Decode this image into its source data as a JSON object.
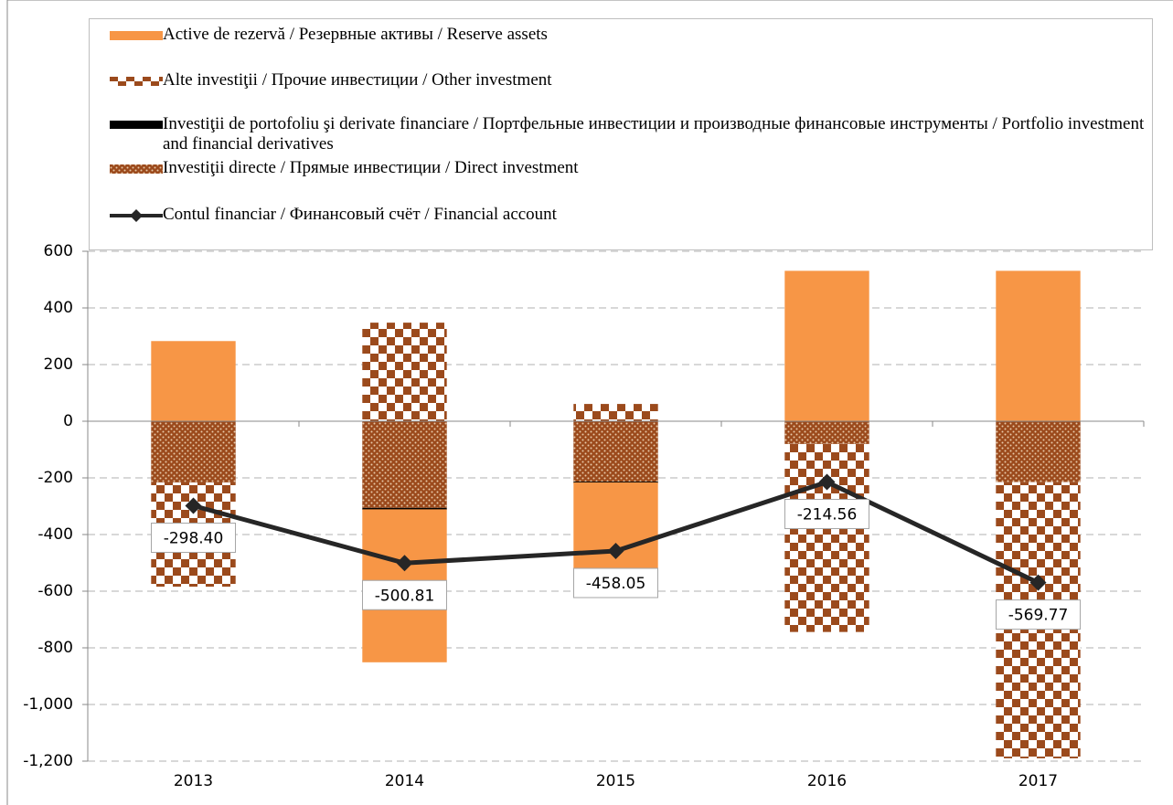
{
  "chart_data": {
    "type": "bar",
    "categories": [
      "2013",
      "2014",
      "2015",
      "2016",
      "2017"
    ],
    "series": [
      {
        "name": "Active de rezervă / Резервные активы / Reserve assets",
        "color": "#f79646",
        "values": [
          283,
          -540,
          -305,
          531,
          531
        ]
      },
      {
        "name": "Alte investiţii / Прочие инвестиции / Other investment",
        "color": "#9b4a1c",
        "values": [
          -368,
          348,
          61,
          -664,
          -975
        ]
      },
      {
        "name": "Investiţii de portofoliu şi derivate financiare / Портфельные инвестиции и производные финансовые инструменты / Portfolio investment and financial derivatives",
        "color": "#000000",
        "values": [
          0,
          -5,
          -3,
          0,
          0
        ]
      },
      {
        "name": "Investiţii directe / Прямые инвестиции / Direct investment",
        "color": "#9b4a1c",
        "values": [
          -216,
          -306,
          -213,
          -80,
          -215
        ]
      },
      {
        "name": "Contul financiar / Финансовый счёт / Financial account",
        "color": "#262626",
        "type": "line",
        "values": [
          -298.4,
          -500.81,
          -458.05,
          -214.56,
          -569.77
        ],
        "value_labels": [
          "-298.40",
          "-500.81",
          "-458.05",
          "-214.56",
          "-569.77"
        ]
      }
    ],
    "ylim": [
      -1200,
      600
    ],
    "yticks": [
      {
        "value": -1200,
        "label": "-1,200"
      },
      {
        "value": -1000,
        "label": "-1,000"
      },
      -800,
      -600,
      -400,
      -200,
      0,
      200,
      400,
      600
    ],
    "grid": true
  }
}
